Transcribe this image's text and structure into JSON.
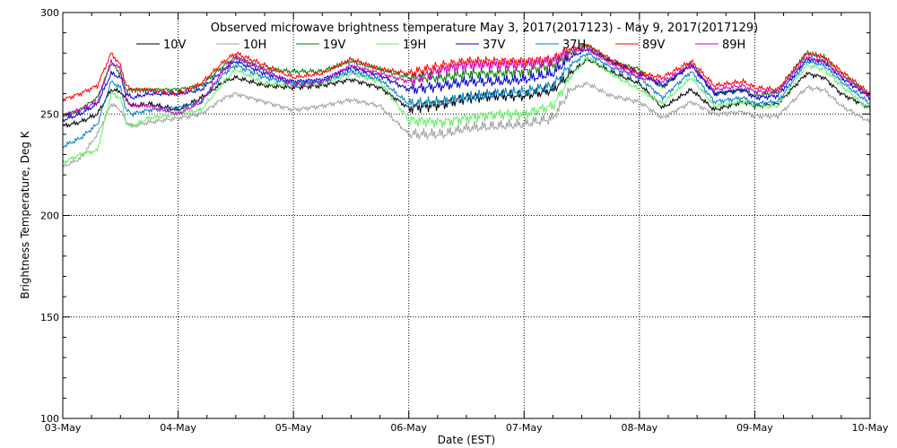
{
  "chart_data": {
    "type": "line",
    "title": "Observed microwave brightness temperature May  3, 2017(2017123) - May  9, 2017(2017129)",
    "xlabel": "Date (EST)",
    "ylabel": "Brightness Temperature, Deg K",
    "ylim": [
      100,
      300
    ],
    "yticks": [
      100,
      150,
      200,
      250,
      300
    ],
    "xlim": [
      0,
      7
    ],
    "xticks": [
      {
        "pos": 0,
        "label": "03-May"
      },
      {
        "pos": 1,
        "label": "04-May"
      },
      {
        "pos": 2,
        "label": "05-May"
      },
      {
        "pos": 3,
        "label": "06-May"
      },
      {
        "pos": 4,
        "label": "07-May"
      },
      {
        "pos": 5,
        "label": "08-May"
      },
      {
        "pos": 6,
        "label": "09-May"
      },
      {
        "pos": 7,
        "label": "10-May"
      }
    ],
    "grid": true,
    "legend_position": "top",
    "series": [
      {
        "name": "10V",
        "color": "#000000",
        "x": [
          0,
          0.15,
          0.3,
          0.42,
          0.5,
          0.55,
          0.6,
          0.75,
          1,
          1.2,
          1.4,
          1.5,
          1.75,
          2,
          2.25,
          2.5,
          2.75,
          3,
          3.3,
          3.5,
          3.75,
          4,
          4.25,
          4.4,
          4.55,
          4.75,
          5,
          5.2,
          5.45,
          5.65,
          5.9,
          6,
          6.2,
          6.45,
          6.6,
          6.75,
          7
        ],
        "y": [
          244,
          246,
          250,
          262,
          261,
          257,
          254,
          255,
          252,
          258,
          266,
          268,
          264,
          263,
          264,
          267,
          263,
          253,
          255,
          258,
          259,
          259,
          262,
          270,
          277,
          271,
          265,
          253,
          262,
          252,
          256,
          254,
          255,
          270,
          268,
          260,
          253
        ]
      },
      {
        "name": "10H",
        "color": "#a0a0a0",
        "x": [
          0,
          0.15,
          0.3,
          0.42,
          0.5,
          0.55,
          0.6,
          0.75,
          1,
          1.2,
          1.4,
          1.5,
          1.75,
          2,
          2.25,
          2.5,
          2.75,
          3,
          3.3,
          3.5,
          3.75,
          4,
          4.25,
          4.4,
          4.55,
          4.75,
          5,
          5.2,
          5.45,
          5.65,
          5.9,
          6,
          6.2,
          6.45,
          6.6,
          6.75,
          7
        ],
        "y": [
          224,
          228,
          240,
          255,
          252,
          246,
          244,
          246,
          248,
          250,
          258,
          260,
          256,
          252,
          254,
          257,
          254,
          240,
          240,
          243,
          244,
          245,
          248,
          262,
          265,
          259,
          256,
          248,
          256,
          250,
          251,
          249,
          249,
          263,
          262,
          254,
          246
        ]
      },
      {
        "name": "19V",
        "color": "#008000",
        "x": [
          0,
          0.15,
          0.3,
          0.42,
          0.5,
          0.55,
          0.6,
          0.75,
          1,
          1.2,
          1.4,
          1.5,
          1.75,
          2,
          2.25,
          2.5,
          2.75,
          3,
          3.3,
          3.5,
          3.75,
          4,
          4.25,
          4.4,
          4.55,
          4.75,
          5,
          5.2,
          5.45,
          5.65,
          5.9,
          6,
          6.2,
          6.45,
          6.6,
          6.75,
          7
        ],
        "y": [
          249,
          252,
          258,
          275,
          270,
          262,
          262,
          262,
          262,
          264,
          274,
          278,
          272,
          271,
          271,
          276,
          272,
          268,
          268,
          270,
          270,
          271,
          274,
          280,
          284,
          276,
          272,
          263,
          275,
          260,
          262,
          259,
          261,
          280,
          278,
          270,
          259
        ]
      },
      {
        "name": "19H",
        "color": "#66ee66",
        "x": [
          0,
          0.15,
          0.3,
          0.42,
          0.5,
          0.55,
          0.6,
          0.75,
          1,
          1.2,
          1.4,
          1.5,
          1.75,
          2,
          2.25,
          2.5,
          2.75,
          3,
          3.3,
          3.5,
          3.75,
          4,
          4.25,
          4.4,
          4.55,
          4.75,
          5,
          5.2,
          5.45,
          5.65,
          5.9,
          6,
          6.2,
          6.45,
          6.6,
          6.75,
          7
        ],
        "y": [
          226,
          230,
          232,
          260,
          258,
          246,
          244,
          248,
          250,
          252,
          266,
          272,
          265,
          264,
          265,
          270,
          266,
          247,
          246,
          248,
          250,
          250,
          254,
          268,
          278,
          270,
          262,
          255,
          268,
          254,
          256,
          254,
          254,
          274,
          272,
          264,
          252
        ]
      },
      {
        "name": "37V",
        "color": "#0000cc",
        "x": [
          0,
          0.15,
          0.3,
          0.42,
          0.5,
          0.55,
          0.6,
          0.75,
          1,
          1.2,
          1.4,
          1.5,
          1.75,
          2,
          2.25,
          2.5,
          2.75,
          3,
          3.3,
          3.5,
          3.75,
          4,
          4.25,
          4.4,
          4.55,
          4.75,
          5,
          5.2,
          5.45,
          5.65,
          5.9,
          6,
          6.2,
          6.45,
          6.6,
          6.75,
          7
        ],
        "y": [
          247,
          250,
          255,
          270,
          268,
          260,
          258,
          260,
          260,
          262,
          272,
          276,
          270,
          266,
          267,
          273,
          269,
          262,
          264,
          266,
          266,
          267,
          270,
          278,
          282,
          276,
          270,
          264,
          274,
          260,
          262,
          258,
          259,
          277,
          276,
          268,
          258
        ]
      },
      {
        "name": "37H",
        "color": "#0080c0",
        "x": [
          0,
          0.15,
          0.3,
          0.42,
          0.5,
          0.55,
          0.6,
          0.75,
          1,
          1.2,
          1.4,
          1.5,
          1.75,
          2,
          2.25,
          2.5,
          2.75,
          3,
          3.3,
          3.5,
          3.75,
          4,
          4.25,
          4.4,
          4.55,
          4.75,
          5,
          5.2,
          5.45,
          5.65,
          5.9,
          6,
          6.2,
          6.45,
          6.6,
          6.75,
          7
        ],
        "y": [
          234,
          238,
          245,
          266,
          263,
          252,
          250,
          252,
          253,
          256,
          270,
          274,
          268,
          265,
          266,
          271,
          267,
          255,
          256,
          258,
          260,
          261,
          264,
          274,
          280,
          273,
          268,
          258,
          271,
          256,
          258,
          255,
          256,
          276,
          274,
          266,
          255
        ]
      },
      {
        "name": "89V",
        "color": "#ff0000",
        "x": [
          0,
          0.15,
          0.3,
          0.42,
          0.5,
          0.55,
          0.6,
          0.75,
          1,
          1.2,
          1.4,
          1.5,
          1.75,
          2,
          2.25,
          2.5,
          2.75,
          3,
          3.3,
          3.5,
          3.75,
          4,
          4.25,
          4.4,
          4.55,
          4.75,
          5,
          5.2,
          5.45,
          5.65,
          5.9,
          6,
          6.2,
          6.45,
          6.6,
          6.75,
          7
        ],
        "y": [
          257,
          260,
          264,
          280,
          274,
          264,
          262,
          262,
          260,
          265,
          276,
          280,
          274,
          268,
          270,
          277,
          272,
          270,
          274,
          276,
          276,
          276,
          277,
          282,
          284,
          277,
          270,
          268,
          276,
          264,
          266,
          263,
          262,
          280,
          278,
          271,
          260
        ]
      },
      {
        "name": "89H",
        "color": "#cc00cc",
        "x": [
          0,
          0.15,
          0.3,
          0.42,
          0.5,
          0.55,
          0.6,
          0.75,
          1,
          1.2,
          1.4,
          1.5,
          1.75,
          2,
          2.25,
          2.5,
          2.75,
          3,
          3.3,
          3.5,
          3.75,
          4,
          4.25,
          4.4,
          4.55,
          4.75,
          5,
          5.2,
          5.45,
          5.65,
          5.9,
          6,
          6.2,
          6.45,
          6.6,
          6.75,
          7
        ],
        "y": [
          249,
          252,
          256,
          276,
          272,
          257,
          254,
          254,
          250,
          256,
          272,
          278,
          272,
          264,
          266,
          274,
          270,
          266,
          272,
          274,
          274,
          274,
          276,
          281,
          282,
          275,
          268,
          266,
          274,
          262,
          264,
          261,
          261,
          278,
          276,
          269,
          259
        ]
      }
    ]
  }
}
